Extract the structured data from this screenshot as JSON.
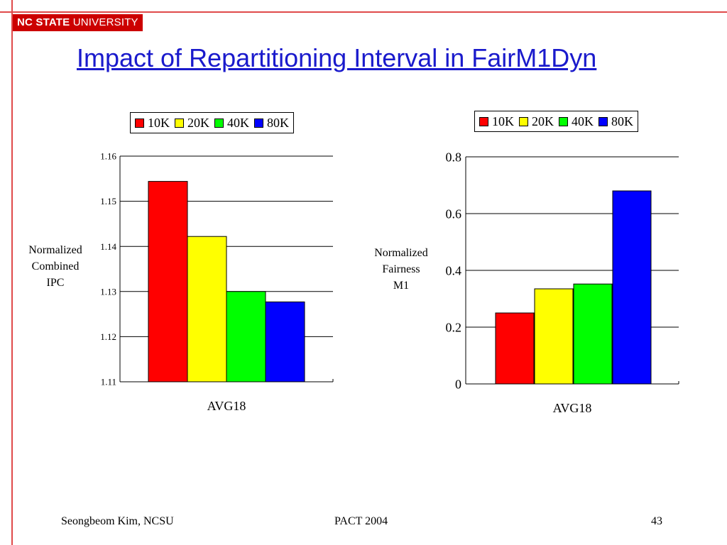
{
  "header": {
    "logo_bold": "NC STATE",
    "logo_rest": " UNIVERSITY",
    "title": "Impact of Repartitioning Interval in FairM1Dyn"
  },
  "colors": {
    "rule": "#e04a4a",
    "logo_bg": "#cc0000",
    "title": "#1a1acc"
  },
  "chart_data": [
    {
      "type": "bar",
      "title": "",
      "categories": [
        "AVG18"
      ],
      "series": [
        {
          "name": "10K",
          "color": "#ff0000",
          "values": [
            1.1544
          ]
        },
        {
          "name": "20K",
          "color": "#ffff00",
          "values": [
            1.1422
          ]
        },
        {
          "name": "40K",
          "color": "#00ff00",
          "values": [
            1.13
          ]
        },
        {
          "name": "80K",
          "color": "#0000ff",
          "values": [
            1.1277
          ]
        }
      ],
      "xlabel": "AVG18",
      "ylabel_lines": [
        "Normalized",
        "Combined",
        "IPC"
      ],
      "ylim": [
        1.11,
        1.16
      ],
      "yticks": [
        "1.11",
        "1.12",
        "1.13",
        "1.14",
        "1.15",
        "1.16"
      ],
      "grid": true,
      "legend_position": "top"
    },
    {
      "type": "bar",
      "title": "",
      "categories": [
        "AVG18"
      ],
      "series": [
        {
          "name": "10K",
          "color": "#ff0000",
          "values": [
            0.25
          ]
        },
        {
          "name": "20K",
          "color": "#ffff00",
          "values": [
            0.335
          ]
        },
        {
          "name": "40K",
          "color": "#00ff00",
          "values": [
            0.352
          ]
        },
        {
          "name": "80K",
          "color": "#0000ff",
          "values": [
            0.68
          ]
        }
      ],
      "xlabel": "AVG18",
      "ylabel_lines": [
        "Normalized",
        "Fairness",
        "M1"
      ],
      "ylim": [
        0,
        0.8
      ],
      "yticks": [
        "0",
        "0.2",
        "0.4",
        "0.6",
        "0.8"
      ],
      "grid": true,
      "legend_position": "top"
    }
  ],
  "footer": {
    "author": "Seongbeom Kim, NCSU",
    "conference": "PACT 2004",
    "page_number": "43"
  }
}
